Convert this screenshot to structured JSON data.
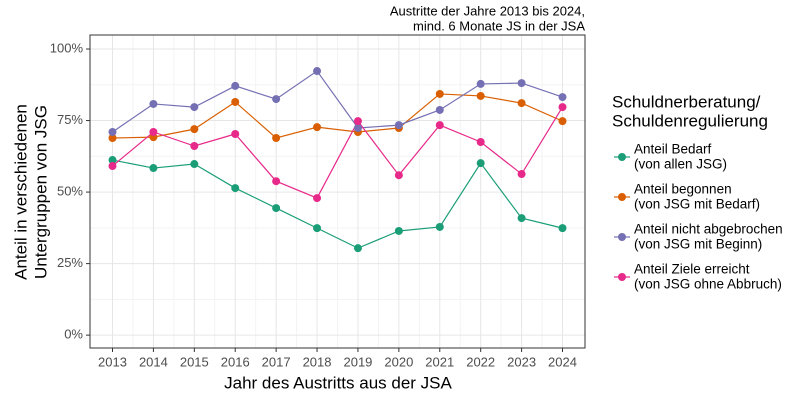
{
  "chart_data": {
    "type": "line",
    "subtitle": [
      "Austritte der Jahre 2013 bis 2024,",
      "mind. 6 Monate JS in der JSA"
    ],
    "x_label": "Jahr des Austritts aus der JSA",
    "y_label": [
      "Anteil in verschiedenen",
      "Untergruppen von JSG"
    ],
    "legend_title": [
      "Schuldnerberatung/",
      "Schuldenregulierung"
    ],
    "legend_position": "right",
    "grid": true,
    "x": [
      2013,
      2014,
      2015,
      2016,
      2017,
      2018,
      2019,
      2020,
      2021,
      2022,
      2023,
      2024
    ],
    "xlim": [
      2012.45,
      2024.55
    ],
    "xticks": [
      2013,
      2014,
      2015,
      2016,
      2017,
      2018,
      2019,
      2020,
      2021,
      2022,
      2023,
      2024
    ],
    "ylim": [
      -4.5,
      104.9
    ],
    "yticks": [
      {
        "value": 0,
        "label": "0%"
      },
      {
        "value": 25,
        "label": "25%"
      },
      {
        "value": 50,
        "label": "50%"
      },
      {
        "value": 75,
        "label": "75%"
      },
      {
        "value": 100,
        "label": "100%"
      }
    ],
    "series": [
      {
        "name": [
          "Anteil Bedarf",
          "(von allen JSG)"
        ],
        "color": "#1b9e77",
        "values": [
          61.2,
          58.4,
          59.8,
          51.4,
          44.4,
          37.4,
          30.4,
          36.4,
          37.8,
          60.1,
          40.9,
          37.4
        ]
      },
      {
        "name": [
          "Anteil begonnen",
          "(von JSG mit Bedarf)"
        ],
        "color": "#d95f02",
        "values": [
          68.9,
          69.2,
          72.0,
          81.5,
          68.9,
          72.7,
          71.0,
          72.4,
          84.3,
          83.6,
          81.1,
          74.8
        ]
      },
      {
        "name": [
          "Anteil nicht abgebrochen",
          "(von JSG mit Beginn)"
        ],
        "color": "#7570b3",
        "values": [
          71.0,
          80.8,
          79.7,
          87.1,
          82.5,
          92.3,
          72.4,
          73.4,
          78.7,
          87.8,
          88.1,
          83.2
        ]
      },
      {
        "name": [
          "Anteil Ziele erreicht",
          "(von JSG ohne Abbruch)"
        ],
        "color": "#e7298a",
        "values": [
          59.1,
          71.0,
          66.1,
          70.3,
          53.8,
          47.9,
          74.8,
          55.9,
          73.4,
          67.5,
          56.3,
          79.7
        ]
      }
    ]
  }
}
